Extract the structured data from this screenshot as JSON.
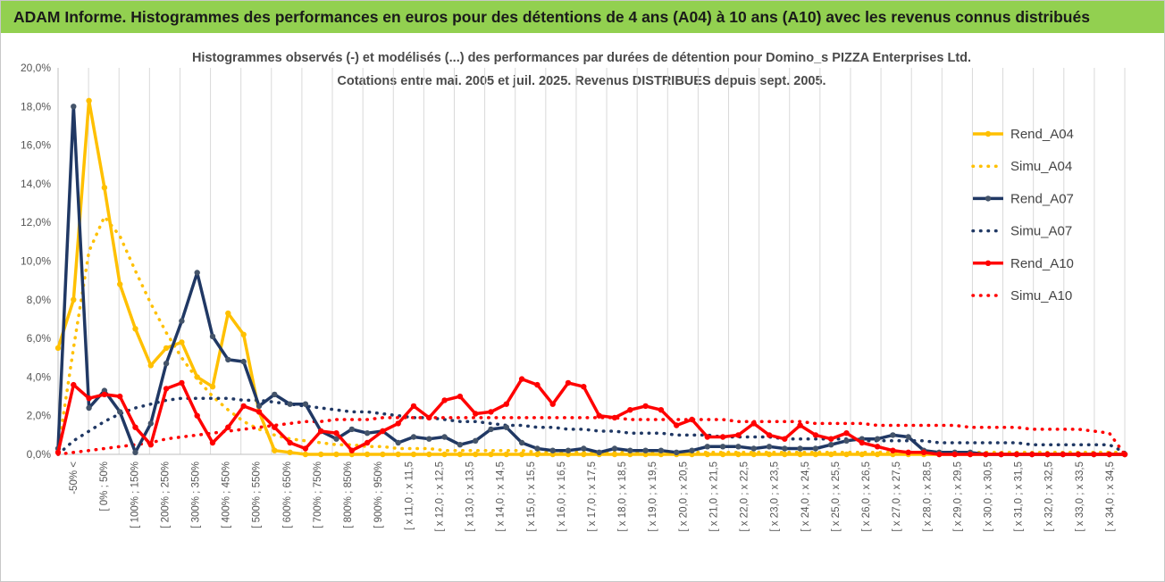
{
  "banner": {
    "title": "ADAM Informe. Histogrammes des performances en euros pour des détentions de 4 ans (A04) à 10 ans (A10) avec les revenus connus distribués",
    "background": "#92d050"
  },
  "chart_data": {
    "type": "line",
    "title": "Histogrammes observés (-)  et modélisés (...) des performances par durées de détention pour Domino_s PIZZA Enterprises Ltd.",
    "subtitle": "Cotations entre mai. 2005 et juil. 2025. Revenus DISTRIBUES depuis sept. 2005.",
    "xlabel": "",
    "ylabel": "",
    "ylim": [
      0,
      20
    ],
    "ytick_labels": [
      "0,0%",
      "2,0%",
      "4,0%",
      "6,0%",
      "8,0%",
      "10,0%",
      "12,0%",
      "14,0%",
      "16,0%",
      "18,0%",
      "20,0%"
    ],
    "grid": "vertical",
    "legend_position": "right",
    "x_tick_labels": [
      "-50% <",
      "[ 0% ; 50%",
      "[ 100% ; 150%",
      "[ 200% ; 250%",
      "[ 300% ; 350%",
      "[ 400% ; 450%",
      "[ 500% ; 550%",
      "[ 600% ; 650%",
      "[ 700% ; 750%",
      "[ 800% ; 850%",
      "[ 900% ; 950%",
      "[ x 11,0 ; x 11,5",
      "[ x 12,0 ; x 12,5",
      "[ x 13,0 ; x 13,5",
      "[ x 14,0 ; x 14,5",
      "[ x 15,0 ; x 15,5",
      "[ x 16,0 ; x 16,5",
      "[ x 17,0 ; x 17,5",
      "[ x 18,0 ; x 18,5",
      "[ x 19,0 ; x 19,5",
      "[ x 20,0 ; x 20,5",
      "[ x 21,0 ; x 21,5",
      "[ x 22,0 ; x 22,5",
      "[ x 23,0 ; x 23,5",
      "[ x 24,0 ; x 24,5",
      "[ x 25,0 ; x 25,5",
      "[ x 26,0 ; x 26,5",
      "[ x 27,0 ; x 27,5",
      "[ x 28,0 ; x 28,5",
      "[ x 29,0 ; x 29,5",
      "[ x 30,0 ; x 30,5",
      "[ x 31,0 ; x 31,5",
      "[ x 32,0 ; x 32,5",
      "[ x 33,0 ; x 33,5",
      "[ x 34,0 ; x 34,5"
    ],
    "series": [
      {
        "name": "Rend_A04",
        "style": "solid",
        "color": "#ffc000",
        "markers": true,
        "values": [
          5.5,
          8.0,
          18.3,
          13.8,
          8.8,
          6.5,
          4.6,
          5.5,
          5.8,
          4.0,
          3.5,
          7.3,
          6.2,
          2.2,
          0.2,
          0.1,
          0.0,
          0,
          0,
          0,
          0,
          0,
          0,
          0,
          0,
          0,
          0,
          0,
          0,
          0,
          0,
          0,
          0,
          0,
          0,
          0,
          0,
          0,
          0,
          0,
          0,
          0,
          0,
          0,
          0,
          0,
          0,
          0,
          0,
          0,
          0,
          0,
          0,
          0,
          0,
          0,
          0,
          0,
          0,
          0,
          0,
          0,
          0,
          0,
          0,
          0,
          0,
          0,
          0,
          0
        ]
      },
      {
        "name": "Simu_A04",
        "style": "dotted",
        "color": "#ffc000",
        "markers": false,
        "values": [
          0.2,
          5.5,
          10.5,
          12.3,
          11.3,
          9.5,
          7.8,
          6.3,
          5.0,
          3.9,
          3.0,
          2.3,
          1.7,
          1.3,
          1.0,
          0.8,
          0.7,
          0.6,
          0.5,
          0.5,
          0.4,
          0.4,
          0.3,
          0.3,
          0.3,
          0.2,
          0.2,
          0.2,
          0.2,
          0.2,
          0.2,
          0.1,
          0.1,
          0.1,
          0.1,
          0.1,
          0.1,
          0.1,
          0.1,
          0.1,
          0.1,
          0.1,
          0.1,
          0.1,
          0.1,
          0.1,
          0.1,
          0.1,
          0.1,
          0.1,
          0.1,
          0.1,
          0.1,
          0.1,
          0.1,
          0.1,
          0.1,
          0.1,
          0.1,
          0.1,
          0.1,
          0.1,
          0.1,
          0.1,
          0.1,
          0.1,
          0.1,
          0.1,
          0.1,
          0.1
        ]
      },
      {
        "name": "Rend_A07",
        "style": "solid",
        "color": "#203864",
        "markers": true,
        "values": [
          0.3,
          18.0,
          2.4,
          3.3,
          2.2,
          0.1,
          1.6,
          4.7,
          6.9,
          9.4,
          6.1,
          4.9,
          4.8,
          2.5,
          3.1,
          2.6,
          2.6,
          1.2,
          0.8,
          1.3,
          1.1,
          1.2,
          0.6,
          0.9,
          0.8,
          0.9,
          0.5,
          0.7,
          1.3,
          1.4,
          0.6,
          0.3,
          0.2,
          0.2,
          0.3,
          0.1,
          0.3,
          0.2,
          0.2,
          0.2,
          0.1,
          0.2,
          0.4,
          0.4,
          0.4,
          0.3,
          0.4,
          0.3,
          0.3,
          0.3,
          0.5,
          0.7,
          0.8,
          0.8,
          1.0,
          0.9,
          0.2,
          0.1,
          0.1,
          0.1,
          0.0,
          0,
          0,
          0,
          0,
          0,
          0,
          0,
          0,
          0
        ]
      },
      {
        "name": "Simu_A07",
        "style": "dotted",
        "color": "#203864",
        "markers": false,
        "values": [
          0.0,
          0.7,
          1.2,
          1.7,
          2.1,
          2.4,
          2.6,
          2.8,
          2.9,
          2.9,
          2.9,
          2.9,
          2.8,
          2.8,
          2.7,
          2.6,
          2.5,
          2.4,
          2.3,
          2.2,
          2.2,
          2.1,
          2.0,
          1.9,
          1.9,
          1.8,
          1.7,
          1.7,
          1.6,
          1.5,
          1.5,
          1.4,
          1.4,
          1.3,
          1.3,
          1.2,
          1.2,
          1.1,
          1.1,
          1.1,
          1.0,
          1.0,
          1.0,
          0.9,
          0.9,
          0.9,
          0.9,
          0.8,
          0.8,
          0.8,
          0.8,
          0.8,
          0.7,
          0.7,
          0.7,
          0.7,
          0.7,
          0.6,
          0.6,
          0.6,
          0.6,
          0.6,
          0.6,
          0.5,
          0.5,
          0.5,
          0.5,
          0.5,
          0.5,
          0.1
        ]
      },
      {
        "name": "Rend_A10",
        "style": "solid",
        "color": "#ff0000",
        "markers": true,
        "values": [
          0.1,
          3.6,
          2.9,
          3.1,
          3.0,
          1.4,
          0.5,
          3.4,
          3.7,
          2.0,
          0.6,
          1.4,
          2.5,
          2.2,
          1.4,
          0.6,
          0.3,
          1.2,
          1.1,
          0.2,
          0.6,
          1.2,
          1.6,
          2.5,
          1.9,
          2.8,
          3.0,
          2.1,
          2.2,
          2.6,
          3.9,
          3.6,
          2.6,
          3.7,
          3.5,
          2.0,
          1.9,
          2.3,
          2.5,
          2.3,
          1.5,
          1.8,
          0.9,
          0.9,
          1.0,
          1.6,
          1.0,
          0.8,
          1.5,
          1.0,
          0.8,
          1.1,
          0.6,
          0.4,
          0.2,
          0.1,
          0.1,
          0.0,
          0,
          0,
          0,
          0,
          0,
          0,
          0,
          0,
          0,
          0,
          0,
          0
        ]
      },
      {
        "name": "Simu_A10",
        "style": "dotted",
        "color": "#ff0000",
        "markers": false,
        "values": [
          0.0,
          0.1,
          0.2,
          0.3,
          0.4,
          0.5,
          0.6,
          0.8,
          0.9,
          1.0,
          1.1,
          1.2,
          1.3,
          1.4,
          1.5,
          1.6,
          1.7,
          1.7,
          1.8,
          1.8,
          1.8,
          1.9,
          1.9,
          1.9,
          1.9,
          1.9,
          1.9,
          1.9,
          1.9,
          1.9,
          1.9,
          1.9,
          1.9,
          1.9,
          1.9,
          1.9,
          1.9,
          1.8,
          1.8,
          1.8,
          1.8,
          1.8,
          1.8,
          1.8,
          1.7,
          1.7,
          1.7,
          1.7,
          1.7,
          1.6,
          1.6,
          1.6,
          1.6,
          1.5,
          1.5,
          1.5,
          1.5,
          1.5,
          1.5,
          1.4,
          1.4,
          1.4,
          1.4,
          1.3,
          1.3,
          1.3,
          1.3,
          1.2,
          1.1,
          0.0
        ]
      }
    ]
  }
}
